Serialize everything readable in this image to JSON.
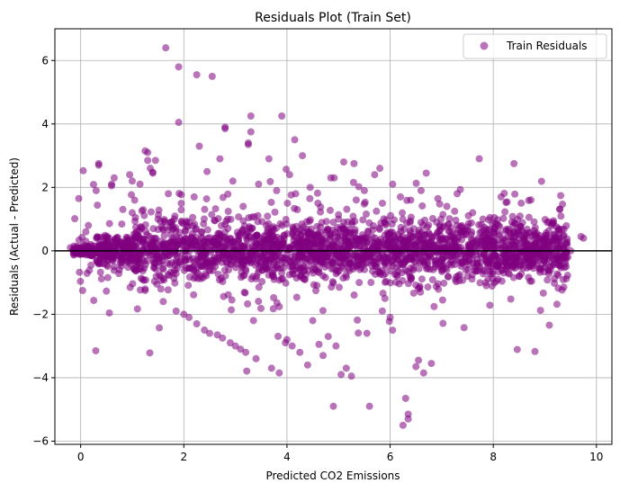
{
  "chart_data": {
    "type": "scatter",
    "title": "Residuals Plot (Train Set)",
    "xlabel": "Predicted CO2 Emissions",
    "ylabel": "Residuals (Actual - Predicted)",
    "xlim": [
      -0.5,
      10.3
    ],
    "ylim": [
      -6.1,
      7.0
    ],
    "xticks": [
      0,
      2,
      4,
      6,
      8,
      10
    ],
    "yticks": [
      -6,
      -4,
      -2,
      0,
      2,
      4,
      6
    ],
    "xtick_labels": [
      "0",
      "2",
      "4",
      "6",
      "8",
      "10"
    ],
    "ytick_labels": [
      "−6",
      "−4",
      "−2",
      "0",
      "2",
      "4",
      "6"
    ],
    "grid": true,
    "reference_line": {
      "y": 0,
      "color": "#000000"
    },
    "legend": {
      "position": "top-right"
    },
    "series": [
      {
        "name": "Train Residuals",
        "color": "#800080",
        "alpha": 0.55,
        "points": [
          [
            -0.2,
            0.1
          ],
          [
            -0.15,
            0.05
          ],
          [
            -0.1,
            -0.05
          ],
          [
            0.0,
            0.1
          ],
          [
            0.05,
            -0.1
          ],
          [
            0.1,
            0.3
          ],
          [
            0.1,
            0.6
          ],
          [
            0.15,
            0.8
          ],
          [
            0.2,
            -0.1
          ],
          [
            0.2,
            0.2
          ],
          [
            0.3,
            1.9
          ],
          [
            0.35,
            2.7
          ],
          [
            0.35,
            2.75
          ],
          [
            0.4,
            -0.4
          ],
          [
            0.5,
            0.1
          ],
          [
            0.55,
            0.2
          ],
          [
            0.6,
            2.05
          ],
          [
            0.6,
            2.1
          ],
          [
            0.65,
            2.3
          ],
          [
            0.65,
            -0.5
          ],
          [
            0.7,
            0.0
          ],
          [
            0.75,
            -0.6
          ],
          [
            0.8,
            0.15
          ],
          [
            0.9,
            -0.3
          ],
          [
            0.95,
            2.4
          ],
          [
            1.0,
            2.2
          ],
          [
            1.0,
            1.2
          ],
          [
            1.05,
            -0.2
          ],
          [
            1.1,
            0.5
          ],
          [
            1.15,
            2.1
          ],
          [
            1.2,
            -0.9
          ],
          [
            1.25,
            -1.2
          ],
          [
            1.25,
            -1.25
          ],
          [
            1.25,
            3.15
          ],
          [
            1.3,
            3.1
          ],
          [
            1.3,
            2.85
          ],
          [
            1.35,
            2.6
          ],
          [
            1.4,
            2.45
          ],
          [
            1.45,
            2.85
          ],
          [
            1.5,
            1.0
          ],
          [
            1.55,
            0.3
          ],
          [
            1.6,
            -1.6
          ],
          [
            1.65,
            6.4
          ],
          [
            1.7,
            1.8
          ],
          [
            1.75,
            0.5
          ],
          [
            1.8,
            -0.7
          ],
          [
            1.85,
            -1.9
          ],
          [
            1.9,
            5.8
          ],
          [
            1.9,
            4.05
          ],
          [
            1.95,
            1.5
          ],
          [
            2.0,
            -2.0
          ],
          [
            2.05,
            0.2
          ],
          [
            2.1,
            -2.1
          ],
          [
            2.1,
            0.9
          ],
          [
            2.2,
            1.7
          ],
          [
            2.25,
            5.55
          ],
          [
            2.25,
            -2.3
          ],
          [
            2.3,
            3.3
          ],
          [
            2.35,
            0.6
          ],
          [
            2.4,
            -2.5
          ],
          [
            2.45,
            2.5
          ],
          [
            2.5,
            -2.6
          ],
          [
            2.55,
            5.5
          ],
          [
            2.6,
            0.4
          ],
          [
            2.65,
            -2.65
          ],
          [
            2.7,
            2.9
          ],
          [
            2.75,
            -2.75
          ],
          [
            2.8,
            3.9
          ],
          [
            2.8,
            3.85
          ],
          [
            2.85,
            1.0
          ],
          [
            2.9,
            -2.9
          ],
          [
            2.95,
            2.2
          ],
          [
            3.0,
            -3.0
          ],
          [
            3.05,
            0.3
          ],
          [
            3.1,
            -3.1
          ],
          [
            3.15,
            1.4
          ],
          [
            3.2,
            -3.2
          ],
          [
            3.25,
            3.4
          ],
          [
            3.25,
            3.35
          ],
          [
            3.3,
            4.25
          ],
          [
            3.3,
            3.75
          ],
          [
            3.35,
            -2.2
          ],
          [
            3.4,
            -3.4
          ],
          [
            3.45,
            2.1
          ],
          [
            3.5,
            -0.4
          ],
          [
            3.6,
            0.8
          ],
          [
            3.65,
            2.9
          ],
          [
            3.7,
            -3.7
          ],
          [
            3.75,
            -0.9
          ],
          [
            3.8,
            1.9
          ],
          [
            3.85,
            -3.85
          ],
          [
            3.9,
            4.25
          ],
          [
            3.95,
            0.5
          ],
          [
            4.0,
            -2.8
          ],
          [
            4.05,
            2.4
          ],
          [
            4.1,
            -3.0
          ],
          [
            4.15,
            3.5
          ],
          [
            4.2,
            1.3
          ],
          [
            4.25,
            -3.2
          ],
          [
            4.3,
            3.0
          ],
          [
            4.35,
            -0.3
          ],
          [
            4.4,
            -3.6
          ],
          [
            4.45,
            2.0
          ],
          [
            4.5,
            -2.2
          ],
          [
            4.6,
            1.5
          ],
          [
            4.7,
            -3.3
          ],
          [
            4.75,
            0.6
          ],
          [
            4.8,
            -2.7
          ],
          [
            4.85,
            2.3
          ],
          [
            4.9,
            -4.9
          ],
          [
            4.95,
            -3.0
          ],
          [
            5.0,
            1.0
          ],
          [
            5.05,
            -3.9
          ],
          [
            5.1,
            2.8
          ],
          [
            5.15,
            -3.7
          ],
          [
            5.2,
            0.1
          ],
          [
            5.25,
            -3.95
          ],
          [
            5.3,
            2.75
          ],
          [
            5.4,
            -1.0
          ],
          [
            5.5,
            1.9
          ],
          [
            5.55,
            -2.6
          ],
          [
            5.6,
            -4.9
          ],
          [
            5.7,
            2.4
          ],
          [
            5.75,
            -0.5
          ],
          [
            5.8,
            2.6
          ],
          [
            5.85,
            1.5
          ],
          [
            5.9,
            -1.5
          ],
          [
            6.0,
            -2.1
          ],
          [
            6.05,
            2.1
          ],
          [
            6.1,
            0.3
          ],
          [
            6.2,
            1.7
          ],
          [
            6.25,
            -5.5
          ],
          [
            6.3,
            -4.65
          ],
          [
            6.35,
            -5.3
          ],
          [
            6.35,
            -5.15
          ],
          [
            6.4,
            1.6
          ],
          [
            6.45,
            -0.6
          ],
          [
            6.5,
            -3.65
          ],
          [
            6.55,
            -3.45
          ],
          [
            6.6,
            1.9
          ],
          [
            6.65,
            -3.85
          ],
          [
            6.7,
            2.45
          ],
          [
            6.8,
            -3.55
          ],
          [
            6.9,
            0.9
          ],
          [
            7.0,
            -0.5
          ],
          [
            7.1,
            1.4
          ],
          [
            7.2,
            -0.3
          ],
          [
            7.3,
            1.8
          ],
          [
            7.4,
            0.6
          ],
          [
            7.5,
            -0.8
          ],
          [
            7.6,
            1.2
          ],
          [
            7.7,
            0.2
          ],
          [
            7.8,
            1.0
          ],
          [
            7.9,
            -0.5
          ],
          [
            8.0,
            0.3
          ],
          [
            8.1,
            0.5
          ],
          [
            8.2,
            -0.7
          ],
          [
            8.4,
            0.6
          ],
          [
            8.5,
            -0.8
          ],
          [
            8.6,
            0.4
          ],
          [
            8.7,
            -0.3
          ],
          [
            8.8,
            0.5
          ],
          [
            8.9,
            -0.6
          ],
          [
            9.0,
            0.3
          ],
          [
            9.1,
            -0.5
          ],
          [
            9.2,
            0.4
          ],
          [
            9.3,
            0.3
          ],
          [
            9.4,
            -0.2
          ],
          [
            9.5,
            0.0
          ],
          [
            9.7,
            0.45
          ],
          [
            9.75,
            0.4
          ]
        ]
      }
    ]
  }
}
